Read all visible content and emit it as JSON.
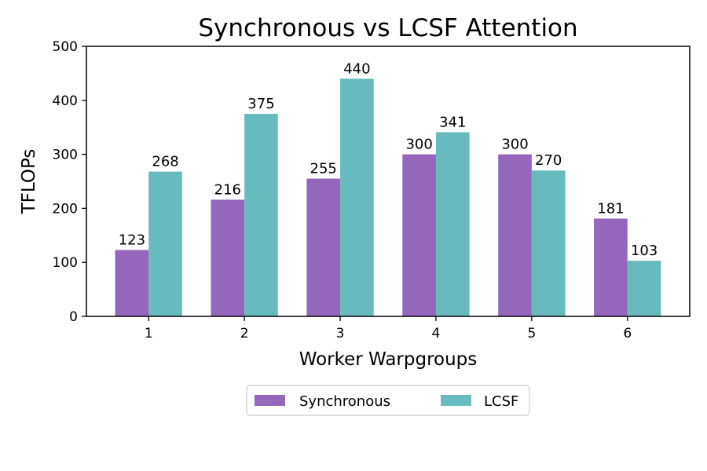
{
  "chart_data": {
    "type": "bar",
    "title": "Synchronous vs LCSF Attention",
    "xlabel": "Worker Warpgroups",
    "ylabel": "TFLOPs",
    "categories": [
      "1",
      "2",
      "3",
      "4",
      "5",
      "6"
    ],
    "ylim": [
      0,
      500
    ],
    "yticks": [
      "0",
      "100",
      "200",
      "300",
      "400",
      "500"
    ],
    "grid": false,
    "legend_position": "bottom-center",
    "series": [
      {
        "name": "Synchronous",
        "color": "#9467bd",
        "values": [
          123,
          216,
          255,
          300,
          300,
          181
        ]
      },
      {
        "name": "LCSF",
        "color": "#67bbbd",
        "values": [
          268,
          375,
          440,
          341,
          270,
          103
        ]
      }
    ]
  }
}
